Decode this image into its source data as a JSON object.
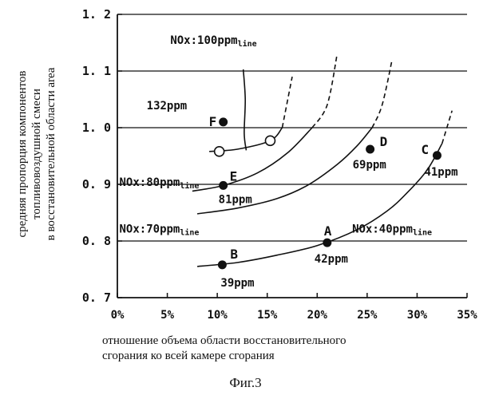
{
  "chart_data": {
    "type": "scatter",
    "title": "",
    "xlabel_lines": [
      "отношение объема области восстановительного",
      "сгорания ко всей камере сгорания"
    ],
    "ylabel_lines": [
      "средняя пропорция компонентов",
      "топливовоздушной смеси",
      "в восстановительной области  area"
    ],
    "xlim": [
      0,
      35
    ],
    "ylim": [
      0.7,
      1.2
    ],
    "x_ticks": [
      "0%",
      "5%",
      "10%",
      "15%",
      "20%",
      "25%",
      "30%",
      "35%"
    ],
    "y_ticks": [
      "0. 7",
      "0. 8",
      "0. 9",
      "1. 0",
      "1. 1",
      "1. 2"
    ],
    "points": [
      {
        "name": "A",
        "x": 21.0,
        "y": 0.797,
        "nox": "42ppm"
      },
      {
        "name": "B",
        "x": 10.5,
        "y": 0.758,
        "nox": "39ppm"
      },
      {
        "name": "C",
        "x": 32.0,
        "y": 0.951,
        "nox": "41ppm"
      },
      {
        "name": "D",
        "x": 25.3,
        "y": 0.962,
        "nox": "69ppm"
      },
      {
        "name": "E",
        "x": 10.6,
        "y": 0.898,
        "nox": "81ppm"
      },
      {
        "name": "F",
        "x": 10.6,
        "y": 1.01,
        "nox": "132ppm"
      }
    ],
    "open_points": [
      {
        "x": 10.2,
        "y": 0.958
      },
      {
        "x": 15.3,
        "y": 0.977
      }
    ],
    "lines": [
      {
        "label": "NOx:40ppm line",
        "label_main": "NOx:40ppm",
        "label_sub": "line",
        "curve": [
          [
            8.0,
            0.755
          ],
          [
            12,
            0.762
          ],
          [
            16,
            0.775
          ],
          [
            20,
            0.792
          ],
          [
            24,
            0.82
          ],
          [
            27,
            0.853
          ],
          [
            29,
            0.885
          ],
          [
            31,
            0.925
          ],
          [
            32.5,
            0.972
          ],
          [
            33.5,
            1.03
          ]
        ],
        "dashed_from": 32.5
      },
      {
        "label": "NOx:70ppm line",
        "label_main": "NOx:70ppm",
        "label_sub": "line",
        "curve": [
          [
            8.0,
            0.848
          ],
          [
            12,
            0.858
          ],
          [
            16,
            0.875
          ],
          [
            19,
            0.898
          ],
          [
            22,
            0.935
          ],
          [
            24,
            0.968
          ],
          [
            25.5,
            1.0
          ],
          [
            26.5,
            1.04
          ],
          [
            27.5,
            1.12
          ]
        ],
        "dashed_from": 25.5
      },
      {
        "label": "NOx:80ppm line",
        "label_main": "NOx:80ppm",
        "label_sub": "line",
        "curve": [
          [
            7.5,
            0.888
          ],
          [
            10.6,
            0.898
          ],
          [
            14,
            0.92
          ],
          [
            17,
            0.955
          ],
          [
            19.5,
            1.0
          ],
          [
            21,
            1.04
          ],
          [
            22,
            1.13
          ]
        ],
        "dashed_from": 20.5
      },
      {
        "label": "NOx:100ppm line",
        "label_main": "NOx:100ppm",
        "label_sub": "line",
        "curve": [
          [
            9.2,
            0.958
          ],
          [
            12,
            0.962
          ],
          [
            15.3,
            0.977
          ],
          [
            16.5,
            1.0
          ],
          [
            17.5,
            1.09
          ]
        ],
        "dashed_from": 16.5
      },
      {
        "label": "",
        "label_main": "",
        "label_sub": "",
        "curve": [
          [
            12.6,
            1.103
          ],
          [
            12.8,
            1.05
          ],
          [
            12.7,
            0.99
          ],
          [
            12.9,
            0.96
          ]
        ],
        "dashed_from": null
      }
    ],
    "line_labels": [
      {
        "ref": 3,
        "x": 5.3,
        "y": 1.148
      },
      {
        "ref": 2,
        "x": 0.2,
        "y": 0.897
      },
      {
        "ref": 1,
        "x": 0.2,
        "y": 0.815
      },
      {
        "ref": 0,
        "x": 23.5,
        "y": 0.815
      }
    ],
    "point_label_offsets": {
      "A": {
        "letter": [
          -4,
          -9
        ],
        "ppm": [
          -16,
          25
        ]
      },
      "B": {
        "letter": [
          10,
          -8
        ],
        "ppm": [
          -2,
          27
        ]
      },
      "C": {
        "letter": [
          -20,
          -2
        ],
        "ppm": [
          -16,
          25
        ]
      },
      "D": {
        "letter": [
          12,
          -4
        ],
        "ppm": [
          -22,
          24
        ]
      },
      "E": {
        "letter": [
          8,
          -6
        ],
        "ppm": [
          -6,
          22
        ]
      },
      "F": {
        "letter": [
          -18,
          5
        ],
        "ppm": [
          -96,
          -16
        ]
      }
    },
    "grid": "horizontal",
    "legend": "none"
  },
  "caption": "Фиг.3"
}
